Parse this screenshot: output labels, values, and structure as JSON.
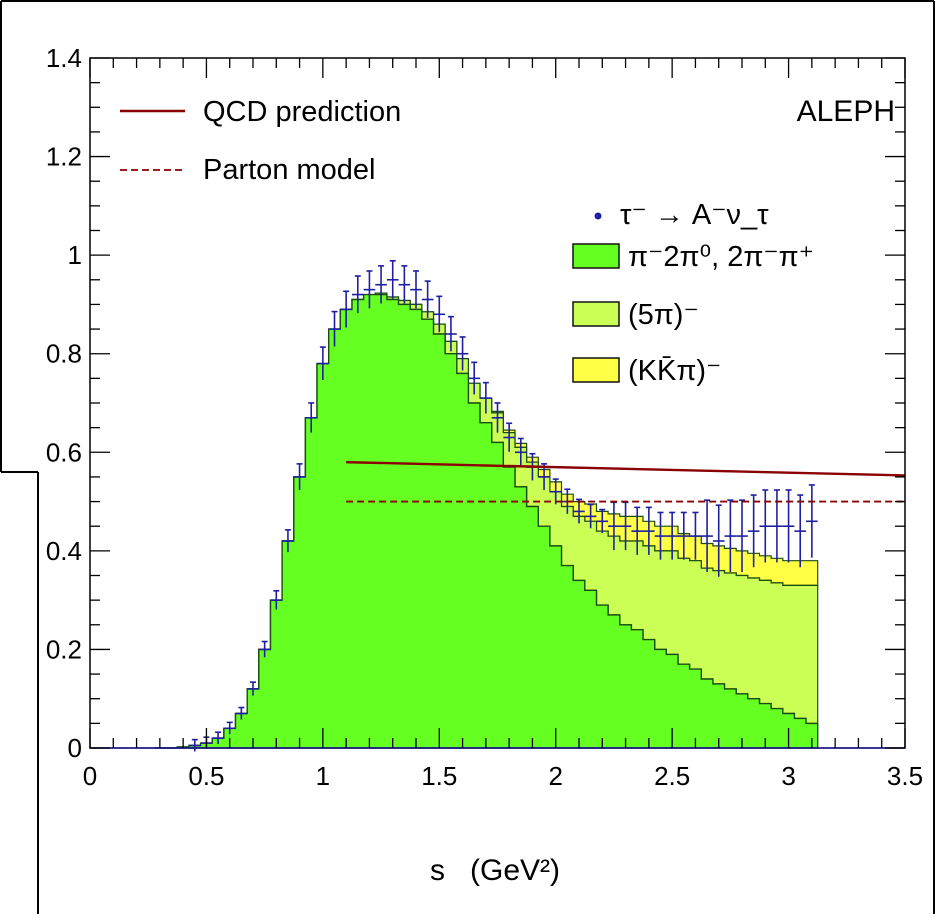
{
  "chart_data": {
    "type": "area",
    "title": "ALEPH",
    "xlabel": "s   (GeV²)",
    "ylabel": "",
    "xlim": [
      0,
      3.5
    ],
    "ylim": [
      0,
      1.4
    ],
    "x_ticks": [
      "0",
      "0.5",
      "1",
      "1.5",
      "2",
      "2.5",
      "3",
      "3.5"
    ],
    "y_ticks": [
      "0",
      "0.2",
      "0.4",
      "0.6",
      "0.8",
      "1",
      "1.2",
      "1.4"
    ],
    "grid": false,
    "legend_position": "top",
    "colors": {
      "three_pion": "#66ff22",
      "five_pion": "#ccff55",
      "kkpi": "#ffff44",
      "outline": "#1a4d10",
      "data": "#1f1fa0",
      "qcd": "#8b0000"
    },
    "legend": {
      "qcd": "QCD prediction",
      "parton": "Parton model",
      "data": "τ⁻ → A⁻ν_τ",
      "three_pion": "π⁻2π⁰, 2π⁻π⁺",
      "five_pion": "(5π)⁻",
      "kkpi": "(KK̄π)⁻"
    },
    "x": [
      0.3,
      0.35,
      0.4,
      0.45,
      0.5,
      0.55,
      0.6,
      0.65,
      0.7,
      0.75,
      0.8,
      0.85,
      0.9,
      0.95,
      1.0,
      1.05,
      1.1,
      1.15,
      1.2,
      1.25,
      1.3,
      1.35,
      1.4,
      1.45,
      1.5,
      1.55,
      1.6,
      1.65,
      1.7,
      1.75,
      1.8,
      1.85,
      1.9,
      1.95,
      2.0,
      2.05,
      2.1,
      2.15,
      2.2,
      2.25,
      2.3,
      2.35,
      2.4,
      2.45,
      2.5,
      2.55,
      2.6,
      2.65,
      2.7,
      2.75,
      2.8,
      2.85,
      2.9,
      2.95,
      3.0,
      3.05,
      3.1
    ],
    "series": [
      {
        "name": "π⁻2π⁰, 2π⁻π⁺",
        "values": [
          0.0,
          0.0,
          0.002,
          0.005,
          0.01,
          0.02,
          0.04,
          0.07,
          0.12,
          0.2,
          0.3,
          0.42,
          0.55,
          0.67,
          0.78,
          0.85,
          0.89,
          0.91,
          0.92,
          0.92,
          0.91,
          0.9,
          0.89,
          0.87,
          0.84,
          0.8,
          0.76,
          0.7,
          0.66,
          0.62,
          0.57,
          0.53,
          0.49,
          0.45,
          0.41,
          0.37,
          0.34,
          0.32,
          0.29,
          0.27,
          0.25,
          0.24,
          0.22,
          0.2,
          0.19,
          0.17,
          0.16,
          0.14,
          0.13,
          0.12,
          0.11,
          0.1,
          0.09,
          0.08,
          0.07,
          0.06,
          0.05
        ]
      },
      {
        "name": "(5π)⁻",
        "values": [
          0,
          0,
          0,
          0,
          0,
          0,
          0,
          0,
          0,
          0,
          0,
          0,
          0,
          0,
          0,
          0,
          0,
          0,
          0,
          0.003,
          0.005,
          0.008,
          0.01,
          0.015,
          0.02,
          0.025,
          0.03,
          0.04,
          0.05,
          0.06,
          0.07,
          0.08,
          0.09,
          0.1,
          0.11,
          0.12,
          0.13,
          0.14,
          0.15,
          0.16,
          0.17,
          0.18,
          0.19,
          0.2,
          0.21,
          0.215,
          0.22,
          0.225,
          0.23,
          0.235,
          0.24,
          0.245,
          0.25,
          0.255,
          0.26,
          0.27,
          0.28
        ]
      },
      {
        "name": "(KK̄π)⁻",
        "values": [
          0,
          0,
          0,
          0,
          0,
          0,
          0,
          0,
          0,
          0,
          0,
          0,
          0,
          0,
          0,
          0,
          0,
          0,
          0,
          0,
          0,
          0,
          0,
          0,
          0,
          0,
          0,
          0,
          0,
          0.003,
          0.005,
          0.008,
          0.01,
          0.015,
          0.02,
          0.025,
          0.03,
          0.035,
          0.04,
          0.045,
          0.05,
          0.05,
          0.05,
          0.05,
          0.05,
          0.05,
          0.05,
          0.05,
          0.05,
          0.05,
          0.05,
          0.05,
          0.05,
          0.05,
          0.05,
          0.05,
          0.05
        ]
      },
      {
        "name": "τ⁻ → A⁻ν_τ",
        "values": [
          0.0,
          0.0,
          0.002,
          0.005,
          0.01,
          0.02,
          0.04,
          0.07,
          0.12,
          0.2,
          0.3,
          0.42,
          0.55,
          0.67,
          0.78,
          0.85,
          0.89,
          0.92,
          0.93,
          0.94,
          0.95,
          0.94,
          0.93,
          0.91,
          0.88,
          0.84,
          0.8,
          0.75,
          0.71,
          0.67,
          0.63,
          0.6,
          0.57,
          0.55,
          0.52,
          0.5,
          0.48,
          0.47,
          0.46,
          0.45,
          0.45,
          0.44,
          0.44,
          0.43,
          0.43,
          0.43,
          0.43,
          0.43,
          0.42,
          0.43,
          0.43,
          0.44,
          0.45,
          0.45,
          0.45,
          0.44,
          0.46
        ]
      },
      {
        "name": "QCD prediction",
        "x": [
          1.1,
          3.5
        ],
        "values": [
          0.58,
          0.553
        ]
      },
      {
        "name": "Parton model",
        "x": [
          1.1,
          3.5
        ],
        "values": [
          0.5,
          0.5
        ]
      }
    ]
  }
}
